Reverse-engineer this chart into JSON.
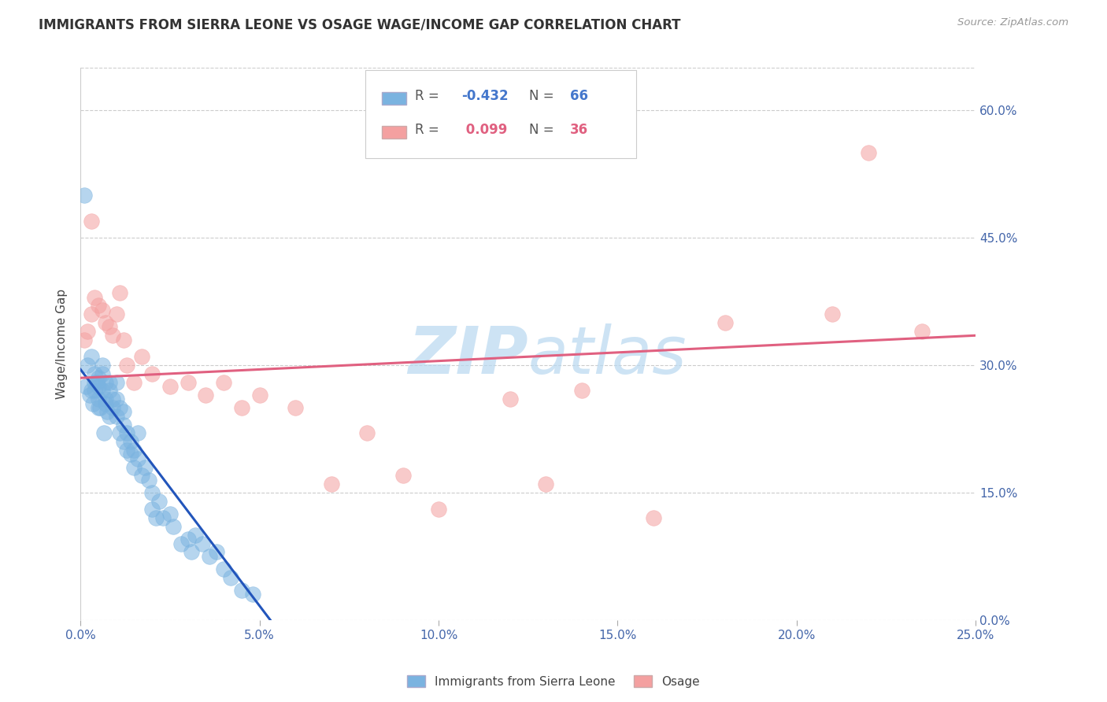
{
  "title": "IMMIGRANTS FROM SIERRA LEONE VS OSAGE WAGE/INCOME GAP CORRELATION CHART",
  "source": "Source: ZipAtlas.com",
  "xlabel_vals": [
    0.0,
    5.0,
    10.0,
    15.0,
    20.0,
    25.0
  ],
  "ylabel_vals": [
    0.0,
    15.0,
    30.0,
    45.0,
    60.0
  ],
  "xmin": 0.0,
  "xmax": 25.0,
  "ymin": 0.0,
  "ymax": 65.0,
  "legend_label1": "Immigrants from Sierra Leone",
  "legend_label2": "Osage",
  "r1": -0.432,
  "n1": 66,
  "r2": 0.099,
  "n2": 36,
  "color_blue": "#7ab3e0",
  "color_pink": "#f4a0a0",
  "trendline_blue": "#2255bb",
  "trendline_pink": "#e06080",
  "watermark": "ZIPAtlas",
  "watermark_color": "#b8d8f0",
  "blue_x": [
    0.1,
    0.2,
    0.3,
    0.3,
    0.4,
    0.4,
    0.4,
    0.5,
    0.5,
    0.5,
    0.5,
    0.6,
    0.6,
    0.6,
    0.7,
    0.7,
    0.7,
    0.8,
    0.8,
    0.8,
    0.9,
    0.9,
    1.0,
    1.0,
    1.0,
    1.1,
    1.1,
    1.2,
    1.2,
    1.2,
    1.3,
    1.3,
    1.4,
    1.4,
    1.5,
    1.5,
    1.6,
    1.6,
    1.7,
    1.8,
    1.9,
    2.0,
    2.0,
    2.1,
    2.2,
    2.3,
    2.5,
    2.6,
    2.8,
    3.0,
    3.1,
    3.2,
    3.4,
    3.6,
    3.8,
    4.0,
    4.2,
    4.5,
    4.8,
    0.15,
    0.25,
    0.35,
    0.45,
    0.55,
    0.65,
    0.75
  ],
  "blue_y": [
    50.0,
    30.0,
    27.0,
    31.0,
    27.0,
    29.0,
    28.0,
    26.0,
    27.5,
    28.5,
    25.0,
    27.0,
    29.0,
    30.0,
    26.0,
    28.0,
    25.5,
    27.0,
    28.0,
    24.0,
    26.0,
    25.0,
    24.0,
    26.0,
    28.0,
    22.0,
    25.0,
    21.0,
    23.0,
    24.5,
    22.0,
    20.0,
    21.0,
    19.5,
    20.0,
    18.0,
    19.0,
    22.0,
    17.0,
    18.0,
    16.5,
    15.0,
    13.0,
    12.0,
    14.0,
    12.0,
    12.5,
    11.0,
    9.0,
    9.5,
    8.0,
    10.0,
    9.0,
    7.5,
    8.0,
    6.0,
    5.0,
    3.5,
    3.0,
    27.5,
    26.5,
    25.5,
    28.0,
    25.0,
    22.0,
    24.5
  ],
  "pink_x": [
    0.1,
    0.2,
    0.3,
    0.3,
    0.4,
    0.5,
    0.6,
    0.7,
    0.8,
    0.9,
    1.0,
    1.1,
    1.2,
    1.3,
    1.5,
    1.7,
    2.0,
    2.5,
    3.0,
    3.5,
    4.0,
    4.5,
    5.0,
    6.0,
    7.0,
    8.0,
    9.0,
    10.0,
    12.0,
    13.0,
    14.0,
    16.0,
    18.0,
    21.0,
    22.0,
    23.5
  ],
  "pink_y": [
    33.0,
    34.0,
    36.0,
    47.0,
    38.0,
    37.0,
    36.5,
    35.0,
    34.5,
    33.5,
    36.0,
    38.5,
    33.0,
    30.0,
    28.0,
    31.0,
    29.0,
    27.5,
    28.0,
    26.5,
    28.0,
    25.0,
    26.5,
    25.0,
    16.0,
    22.0,
    17.0,
    13.0,
    26.0,
    16.0,
    27.0,
    12.0,
    35.0,
    36.0,
    55.0,
    34.0
  ],
  "blue_trend_x0": 0.0,
  "blue_trend_y0": 29.5,
  "blue_trend_x1": 5.3,
  "blue_trend_y1": 0.0,
  "pink_trend_x0": 0.0,
  "pink_trend_y0": 28.5,
  "pink_trend_x1": 25.0,
  "pink_trend_y1": 33.5
}
